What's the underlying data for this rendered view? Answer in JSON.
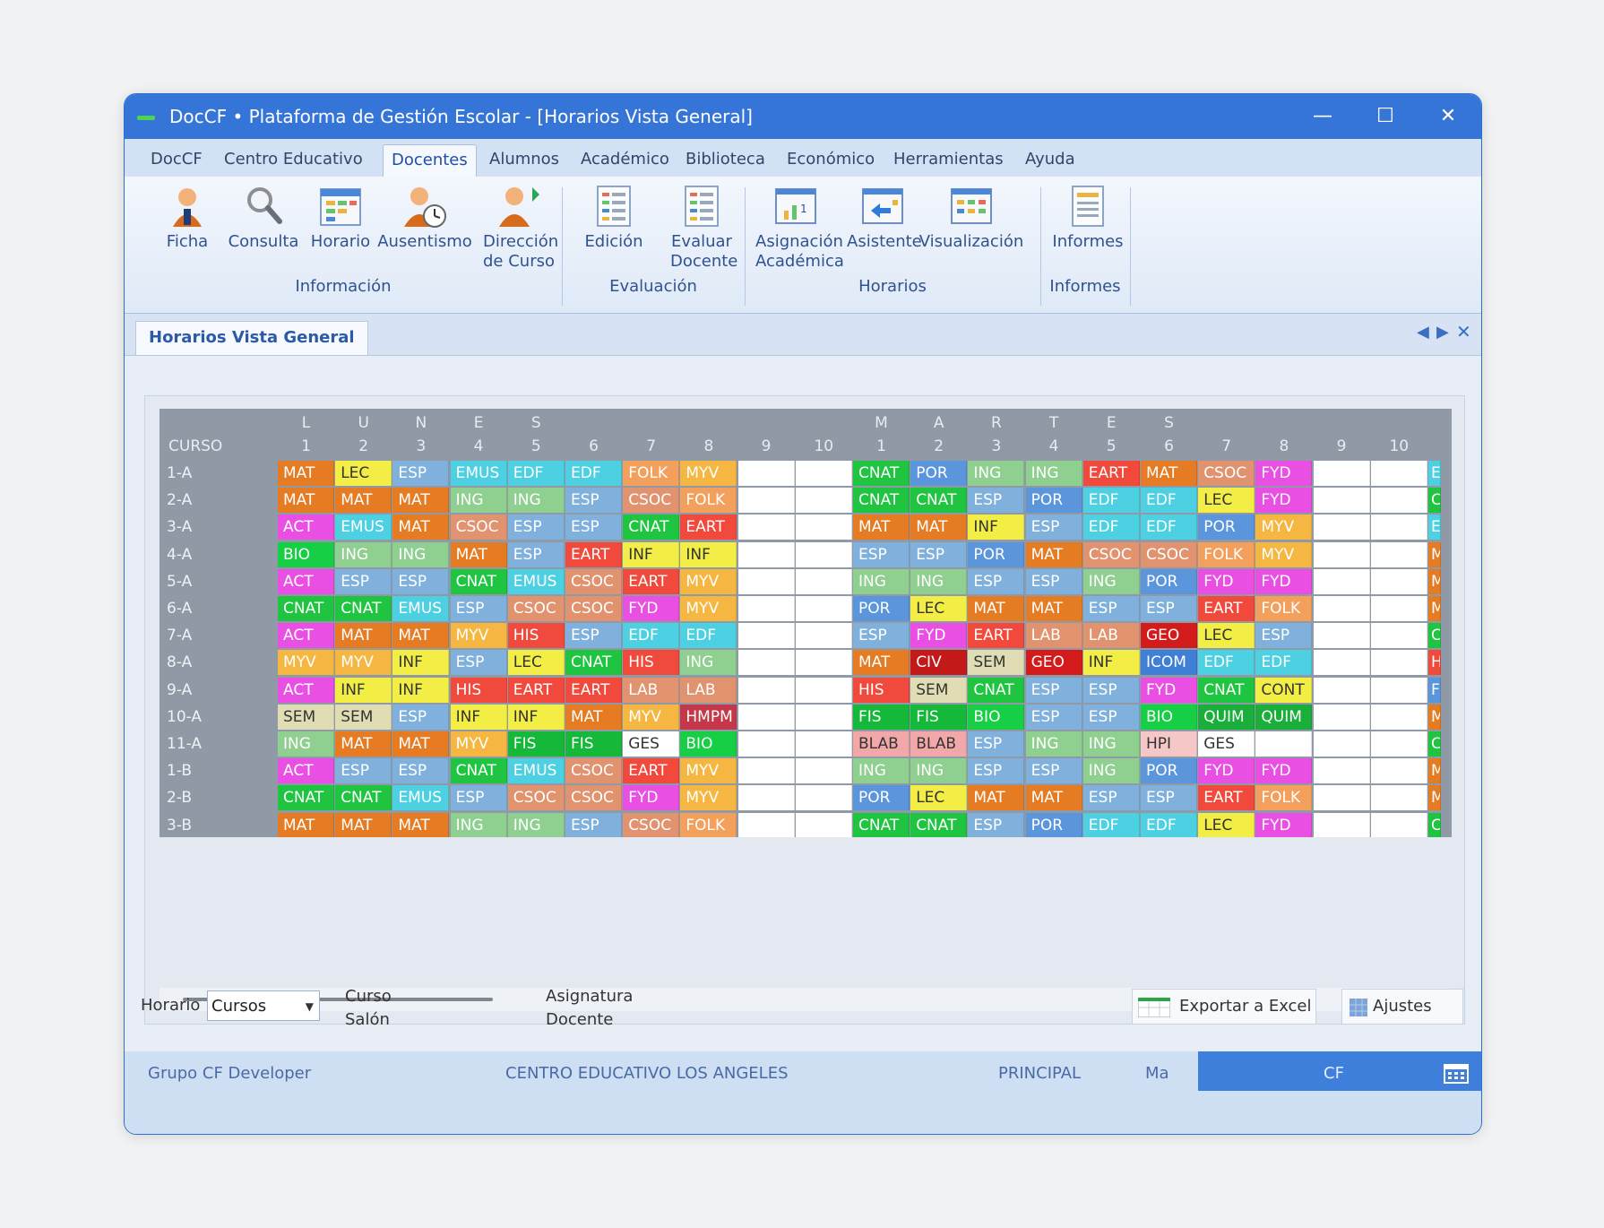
{
  "window": {
    "title": "DocCF • Plataforma de Gestión Escolar  - [Horarios Vista General]"
  },
  "menu": [
    "DocCF",
    "Centro Educativo",
    "Docentes",
    "Alumnos",
    "Académico",
    "Biblioteca",
    "Económico",
    "Herramientas",
    "Ayuda"
  ],
  "menu_active": "Docentes",
  "ribbon": {
    "groups": [
      "Información",
      "Evaluación",
      "Horarios",
      "Informes"
    ],
    "buttons": [
      {
        "label": "Ficha",
        "icon": "person-icon"
      },
      {
        "label": "Consulta",
        "icon": "magnifier-icon"
      },
      {
        "label": "Horario",
        "icon": "schedule-icon"
      },
      {
        "label": "Ausentismo",
        "icon": "person-clock-icon"
      },
      {
        "label": "Dirección de Curso",
        "icon": "person-arrow-icon"
      },
      {
        "label": "Edición",
        "icon": "form-icon"
      },
      {
        "label": "Evaluar Docente",
        "icon": "form-check-icon"
      },
      {
        "label": "Asignación Académica",
        "icon": "chart-board-icon"
      },
      {
        "label": "Asistente",
        "icon": "wizard-icon"
      },
      {
        "label": "Visualización",
        "icon": "view-grid-icon"
      },
      {
        "label": "Informes",
        "icon": "report-icon"
      }
    ]
  },
  "doc_tab": "Horarios Vista General",
  "schedule": {
    "corner": "CURSO",
    "day_letters": [
      {
        "col": 0,
        "text": "L"
      },
      {
        "col": 1,
        "text": "U"
      },
      {
        "col": 2,
        "text": "N"
      },
      {
        "col": 3,
        "text": "E"
      },
      {
        "col": 4,
        "text": "S"
      },
      {
        "col": 10,
        "text": "M"
      },
      {
        "col": 11,
        "text": "A"
      },
      {
        "col": 12,
        "text": "R"
      },
      {
        "col": 13,
        "text": "T"
      },
      {
        "col": 14,
        "text": "E"
      },
      {
        "col": 15,
        "text": "S"
      }
    ],
    "period_numbers": [
      "1",
      "2",
      "3",
      "4",
      "5",
      "6",
      "7",
      "8",
      "9",
      "10",
      "1",
      "2",
      "3",
      "4",
      "5",
      "6",
      "7",
      "8",
      "9",
      "10"
    ],
    "courses": [
      "1-A",
      "2-A",
      "3-A",
      "4-A",
      "5-A",
      "6-A",
      "7-A",
      "8-A",
      "9-A",
      "10-A",
      "11-A",
      "1-B",
      "2-B",
      "3-B"
    ],
    "rows": [
      [
        "MAT",
        "LEC",
        "ESP",
        "EMUS",
        "EDF",
        "EDF",
        "FOLK",
        "MYV",
        "",
        "",
        "CNAT",
        "POR",
        "ING",
        "ING",
        "EART",
        "MAT",
        "CSOC",
        "FYD",
        "",
        ""
      ],
      [
        "MAT",
        "MAT",
        "MAT",
        "ING",
        "ING",
        "ESP",
        "CSOC",
        "FOLK",
        "",
        "",
        "CNAT",
        "CNAT",
        "ESP",
        "POR",
        "EDF",
        "EDF",
        "LEC",
        "FYD",
        "",
        ""
      ],
      [
        "ACT",
        "EMUS",
        "MAT",
        "CSOC",
        "ESP",
        "ESP",
        "CNAT",
        "EART",
        "",
        "",
        "MAT",
        "MAT",
        "INF",
        "ESP",
        "EDF",
        "EDF",
        "POR",
        "MYV",
        "",
        ""
      ],
      [
        "BIO",
        "ING",
        "ING",
        "MAT",
        "ESP",
        "EART",
        "INF",
        "INF",
        "",
        "",
        "ESP",
        "ESP",
        "POR",
        "MAT",
        "CSOC",
        "CSOC",
        "FOLK",
        "MYV",
        "",
        ""
      ],
      [
        "ACT",
        "ESP",
        "ESP",
        "CNAT",
        "EMUS",
        "CSOC",
        "EART",
        "MYV",
        "",
        "",
        "ING",
        "ING",
        "ESP",
        "ESP",
        "ING",
        "POR",
        "FYD",
        "FYD",
        "",
        ""
      ],
      [
        "CNAT",
        "CNAT",
        "EMUS",
        "ESP",
        "CSOC",
        "CSOC",
        "FYD",
        "MYV",
        "",
        "",
        "POR",
        "LEC",
        "MAT",
        "MAT",
        "ESP",
        "ESP",
        "EART",
        "FOLK",
        "",
        ""
      ],
      [
        "ACT",
        "MAT",
        "MAT",
        "MYV",
        "HIS",
        "ESP",
        "EDF",
        "EDF",
        "",
        "",
        "ESP",
        "FYD",
        "EART",
        "LAB",
        "LAB",
        "GEO",
        "LEC",
        "ESP",
        "",
        ""
      ],
      [
        "MYV",
        "MYV",
        "INF",
        "ESP",
        "LEC",
        "CNAT",
        "HIS",
        "ING",
        "",
        "",
        "MAT",
        "CIV",
        "SEM",
        "GEO",
        "INF",
        "ICOM",
        "EDF",
        "EDF",
        "",
        ""
      ],
      [
        "ACT",
        "INF",
        "INF",
        "HIS",
        "EART",
        "EART",
        "LAB",
        "LAB",
        "",
        "",
        "HIS",
        "SEM",
        "CNAT",
        "ESP",
        "ESP",
        "FYD",
        "CNAT",
        "CONT",
        "",
        ""
      ],
      [
        "SEM",
        "SEM",
        "ESP",
        "INF",
        "INF",
        "MAT",
        "MYV",
        "HMPM",
        "",
        "",
        "FIS",
        "FIS",
        "BIO",
        "ESP",
        "ESP",
        "BIO",
        "QUIM",
        "QUIM",
        "",
        ""
      ],
      [
        "ING",
        "MAT",
        "MAT",
        "MYV",
        "FIS",
        "FIS",
        "GES",
        "BIO",
        "",
        "",
        "BLAB",
        "BLAB",
        "ESP",
        "ING",
        "ING",
        "HPI",
        "GES",
        "",
        "",
        ""
      ],
      [
        "ACT",
        "ESP",
        "ESP",
        "CNAT",
        "EMUS",
        "CSOC",
        "EART",
        "MYV",
        "",
        "",
        "ING",
        "ING",
        "ESP",
        "ESP",
        "ING",
        "POR",
        "FYD",
        "FYD",
        "",
        ""
      ],
      [
        "CNAT",
        "CNAT",
        "EMUS",
        "ESP",
        "CSOC",
        "CSOC",
        "FYD",
        "MYV",
        "",
        "",
        "POR",
        "LEC",
        "MAT",
        "MAT",
        "ESP",
        "ESP",
        "EART",
        "FOLK",
        "",
        ""
      ],
      [
        "MAT",
        "MAT",
        "MAT",
        "ING",
        "ING",
        "ESP",
        "CSOC",
        "FOLK",
        "",
        "",
        "CNAT",
        "CNAT",
        "ESP",
        "POR",
        "EDF",
        "EDF",
        "LEC",
        "FYD",
        "",
        ""
      ]
    ],
    "overflow_col": [
      "E",
      "C",
      "E",
      "M",
      "M",
      "M",
      "C",
      "H",
      "F",
      "M",
      "C",
      "M",
      "M",
      "C"
    ],
    "subject_colors": {
      "MAT": "#e57b22",
      "LEC": "#f2ee45",
      "ESP": "#7fb1dc",
      "EMUS": "#4dd1e2",
      "EDF": "#4dd1e2",
      "FOLK": "#f2a05c",
      "MYV": "#f5b742",
      "CNAT": "#1fc540",
      "POR": "#5b95dc",
      "ING": "#8fcf8f",
      "EART": "#f1493b",
      "CSOC": "#e1936f",
      "FYD": "#e94fe3",
      "ACT": "#e94fe3",
      "INF": "#f2ee45",
      "BIO": "#16cf45",
      "HIS": "#ef4a3c",
      "LAB": "#e1936f",
      "GEO": "#d41b1b",
      "SEM": "#e0ddb5",
      "CIV": "#c41919",
      "ICOM": "#3f7fd6",
      "CONT": "#f2ee45",
      "FIS": "#16b83a",
      "HMPM": "#c5384a",
      "QUIM": "#1aaf3a",
      "GES": "#ffffff",
      "BLAB": "#f2a8a8",
      "HPI": "#f5c7c7",
      "": "#ffffff"
    },
    "overflow_colors": {
      "E": "#4dd1e2",
      "C": "#1fc540",
      "M": "#e57b22",
      "H": "#ef4a3c",
      "F": "#5b95dc"
    }
  },
  "bottom": {
    "horario_label": "Horario",
    "horario_value": "Cursos",
    "legend_left": [
      "Curso",
      "Salón"
    ],
    "legend_right": [
      "Asignatura",
      "Docente"
    ],
    "export_button": "Exportar a Excel",
    "settings_button": "Ajustes"
  },
  "status": {
    "group": "Grupo CF Developer",
    "center": "CENTRO EDUCATIVO LOS ANGELES",
    "site": "PRINCIPAL",
    "short": "Ma",
    "user": "CF"
  }
}
